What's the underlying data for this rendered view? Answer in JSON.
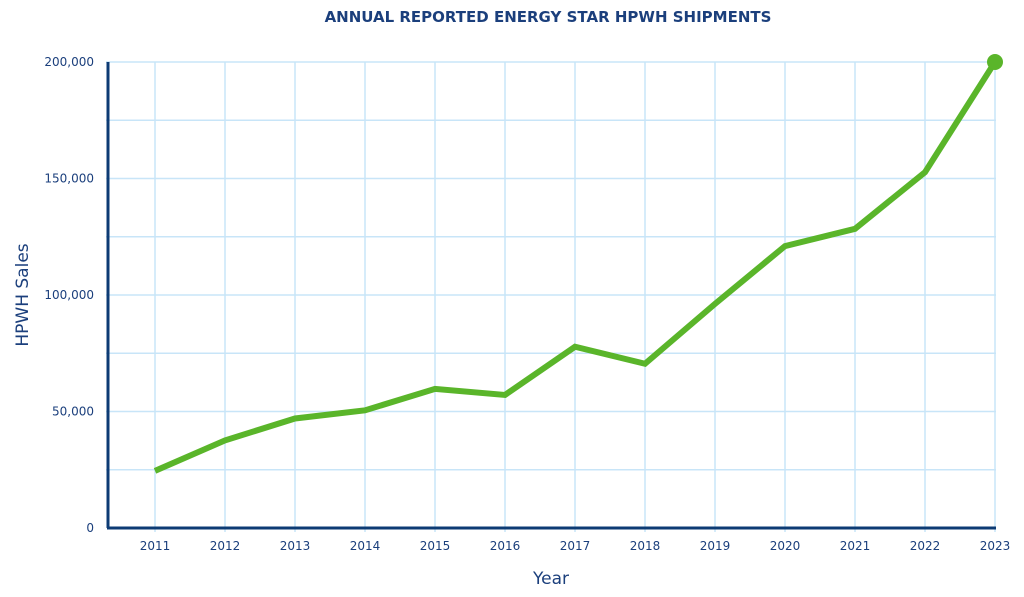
{
  "chart_data": {
    "type": "line",
    "title": "ANNUAL REPORTED ENERGY STAR HPWH SHIPMENTS",
    "xlabel": "Year",
    "ylabel": "HPWH Sales",
    "categories": [
      "2011",
      "2012",
      "2013",
      "2014",
      "2015",
      "2016",
      "2017",
      "2018",
      "2019",
      "2020",
      "2021",
      "2022",
      "2023"
    ],
    "values": [
      24500,
      37600,
      47000,
      50500,
      59700,
      57100,
      77800,
      70500,
      96200,
      121000,
      128400,
      152700,
      200000
    ],
    "ylim": [
      0,
      200000
    ],
    "yticks": [
      0,
      50000,
      100000,
      150000,
      200000
    ],
    "ytick_labels": [
      "0",
      "50,000",
      "100,000",
      "150,000",
      "200,000"
    ],
    "minor_grid_step": 25000,
    "grid": true,
    "end_marker": true,
    "colors": {
      "line": "#5ab52a",
      "grid": "#c8e5f8",
      "axis": "#0d3b74",
      "text": "#1b3f7c"
    }
  }
}
